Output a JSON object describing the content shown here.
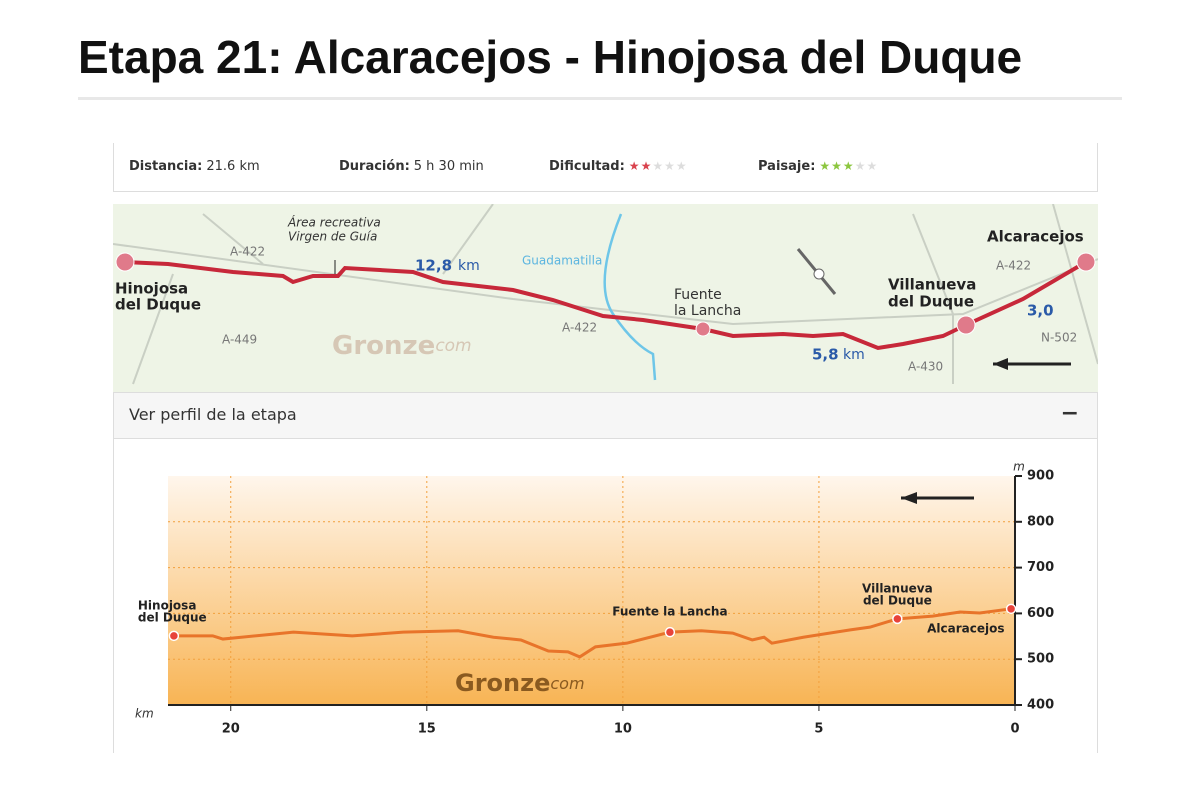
{
  "header": {
    "title": "Etapa 21: Alcaracejos - Hinojosa del Duque"
  },
  "stats": [
    {
      "label": "Distancia:",
      "value": "21.6 km"
    },
    {
      "label": "Duración:",
      "value": "5 h 30 min"
    },
    {
      "label": "Dificultad:",
      "rating": 2,
      "of": 5,
      "color": "#d9434e"
    },
    {
      "label": "Paisaje:",
      "rating": 3,
      "of": 5,
      "color": "#8cc63f"
    }
  ],
  "map": {
    "labels": [
      "Área recreativa",
      "Virgen de Guía",
      "A-422",
      "Hinojosa",
      "del Duque",
      "A-449",
      "12,8",
      "km",
      "Guadamatilla",
      "A-422",
      "Fuente",
      "la Lancha",
      "5,8",
      "km",
      "A-430",
      "Villanueva",
      "del Duque",
      "Alcaracejos",
      "A-422",
      "3,0",
      "N-502"
    ],
    "logo": "Gronze",
    "logo_suffix": "com"
  },
  "panel": {
    "title": "Ver perfil de la etapa",
    "toggle": "−"
  },
  "chart_data": {
    "type": "line",
    "color": "#e8742a",
    "x": [
      21.45,
      20.46,
      20.2,
      18.4,
      16.9,
      15.6,
      14.2,
      13.3,
      12.6,
      11.9,
      11.4,
      11.1,
      10.7,
      9.9,
      8.8,
      8.0,
      7.2,
      6.7,
      6.4,
      6.2,
      5.4,
      4.2,
      3.7,
      3.0,
      2.1,
      1.4,
      0.9,
      0.1
    ],
    "values": [
      551,
      551,
      544,
      559,
      551,
      559,
      562,
      548,
      542,
      518,
      516,
      505,
      527,
      535,
      559,
      562,
      557,
      542,
      548,
      535,
      548,
      564,
      570,
      588,
      594,
      603,
      601,
      610
    ],
    "xlim": [
      21.6,
      0
    ],
    "ylim": [
      400,
      900
    ],
    "xticks": [
      20,
      15,
      10,
      5,
      0
    ],
    "yticks": [
      400,
      500,
      600,
      700,
      800,
      900
    ],
    "grid": true,
    "y_label": "m",
    "x_label": "km",
    "points": [
      {
        "label": [
          "Hinojosa",
          "del Duque"
        ],
        "x": 21.45,
        "y": 551
      },
      {
        "label": [
          "Fuente la Lancha"
        ],
        "x": 8.8,
        "y": 559
      },
      {
        "label": [
          "Villanueva",
          "del Duque"
        ],
        "x": 3.0,
        "y": 588
      },
      {
        "label": [
          "Alcaracejos"
        ],
        "x": 0.1,
        "y": 610
      }
    ],
    "logo": "Gronze",
    "logo_suffix": "com"
  }
}
